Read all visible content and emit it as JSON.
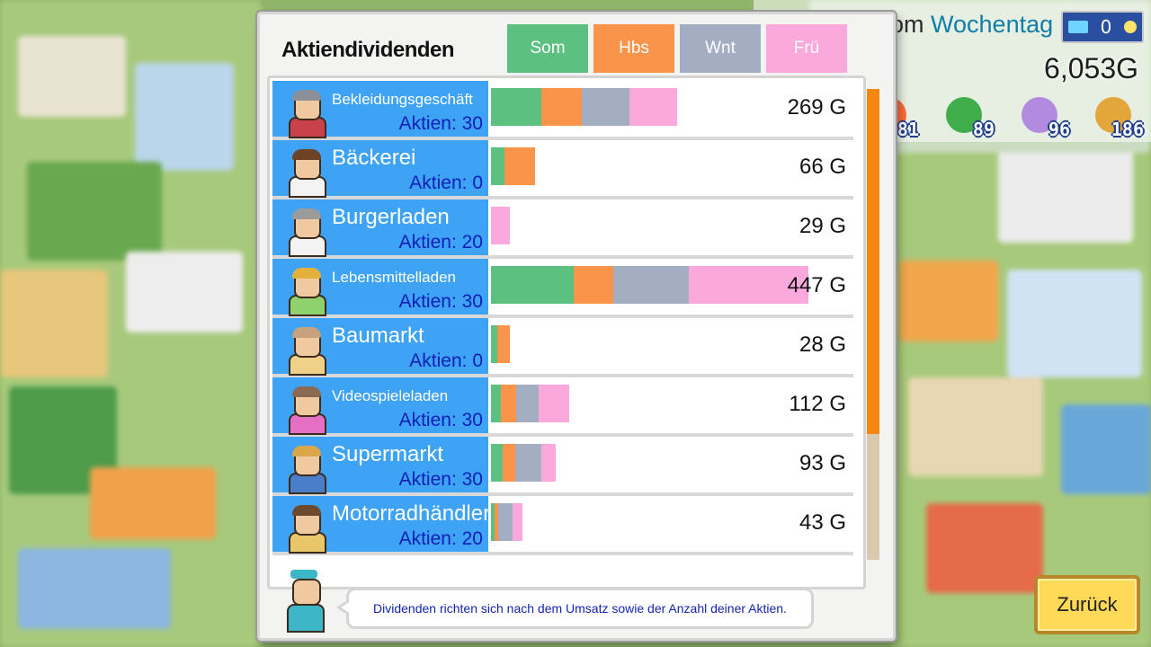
{
  "hud": {
    "week_prefix": "om",
    "weekday_label": "Wochentag",
    "counter_value": "0",
    "money": "6,053G",
    "stats": [
      {
        "icon": "red-coin-icon",
        "value": "81",
        "color": "#ff6a3a"
      },
      {
        "icon": "green-bag-icon",
        "value": "89",
        "color": "#3fae4a"
      },
      {
        "icon": "music-note-icon",
        "value": "96",
        "color": "#b28be0"
      },
      {
        "icon": "gold-coin-icon",
        "value": "186",
        "color": "#e3a63a"
      }
    ]
  },
  "panel": {
    "title": "Aktiendividenden",
    "seasons": [
      {
        "label": "Som",
        "color": "#5cc081"
      },
      {
        "label": "Hbs",
        "color": "#f9944a"
      },
      {
        "label": "Wnt",
        "color": "#a3aec2"
      },
      {
        "label": "Frü",
        "color": "#fba8dc"
      }
    ],
    "max_amount": 447,
    "stores": [
      {
        "name": "Bekleidungsgeschäft",
        "size": "small",
        "shares": "Aktien: 30",
        "amount": "269 G",
        "values": [
          63,
          50,
          60,
          60
        ],
        "hair": "#8a8f99",
        "shirt": "#c9414a"
      },
      {
        "name": "Bäckerei",
        "size": "big",
        "shares": "Aktien: 0",
        "amount": "66 G",
        "values": [
          17,
          38,
          0,
          0
        ],
        "hair": "#6d4326",
        "shirt": "#f3f3f3"
      },
      {
        "name": "Burgerladen",
        "size": "big",
        "shares": "Aktien: 20",
        "amount": "29 G",
        "values": [
          0,
          0,
          0,
          24
        ],
        "hair": "#9b9b9b",
        "shirt": "#f3f3f3"
      },
      {
        "name": "Lebensmittelladen",
        "size": "small",
        "shares": "Aktien: 30",
        "amount": "447 G",
        "values": [
          103,
          50,
          94,
          150
        ],
        "hair": "#e4b03c",
        "shirt": "#8fd16d"
      },
      {
        "name": "Baumarkt",
        "size": "big",
        "shares": "Aktien: 0",
        "amount": "28 G",
        "values": [
          8,
          16,
          0,
          0
        ],
        "hair": "#c7a27e",
        "shirt": "#f0d18a"
      },
      {
        "name": "Videospieleladen",
        "size": "small",
        "shares": "Aktien: 30",
        "amount": "112 G",
        "values": [
          12,
          20,
          28,
          38
        ],
        "hair": "#8a6a52",
        "shirt": "#e46fc3"
      },
      {
        "name": "Supermarkt",
        "size": "big",
        "shares": "Aktien: 30",
        "amount": "93 G",
        "values": [
          15,
          15,
          33,
          18
        ],
        "hair": "#d9a649",
        "shirt": "#4a7ec8"
      },
      {
        "name": "Motorradhändler",
        "size": "big",
        "shares": "Aktien: 20",
        "amount": "43 G",
        "values": [
          5,
          4,
          18,
          12
        ],
        "hair": "#6d4a2e",
        "shirt": "#e9c66a"
      }
    ],
    "hint": "Dividenden richten sich nach dem Umsatz sowie der Anzahl deiner Aktien."
  },
  "back_button": "Zurück"
}
